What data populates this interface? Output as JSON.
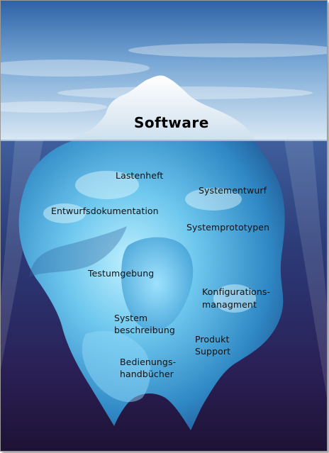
{
  "title": "Software",
  "labels": {
    "lastenheft": "Lastenheft",
    "systementwurf": "Systementwurf",
    "entwurfsdokumentation": "Entwurfsdokumentation",
    "systemprototypen": "Systemprototypen",
    "testumgebung": "Testumgebung",
    "konfigurations_1": "Konfigurations-",
    "konfigurations_2": "managment",
    "system_1": "System",
    "system_2": "beschreibung",
    "produkt_1": "Produkt",
    "produkt_2": "Support",
    "bedienungs_1": "Bedienungs-",
    "bedienungs_2": "handbücher"
  },
  "colors": {
    "sky_top": "#3a6fb0",
    "sky_bottom": "#c9dff0",
    "water_top": "#2f4a86",
    "water_bottom": "#24163e",
    "ice_tip": "#ffffff",
    "ice_under": "#5fb6e6"
  }
}
